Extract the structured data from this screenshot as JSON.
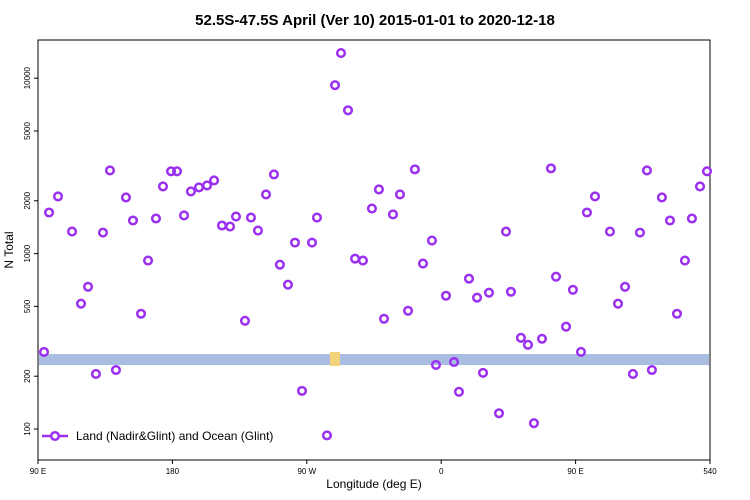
{
  "chart_data": {
    "type": "scatter",
    "title": "52.5S-47.5S April (Ver 10)   2015-01-01 to 2020-12-18",
    "x_label": "Longitude (deg E)",
    "y_label": "N Total",
    "log_y": true,
    "xlim": [
      90,
      540
    ],
    "xticks": [
      {
        "value": 90,
        "label": "90 E"
      },
      180,
      {
        "value": 270,
        "label": "90 W"
      },
      {
        "value": 360,
        "label": "0"
      },
      {
        "value": 450,
        "label": "90 E"
      },
      540
    ],
    "ylim": [
      66.6,
      16500
    ],
    "yticks": [
      100,
      200,
      500,
      1000,
      2000,
      5000,
      10000
    ],
    "legend": "bottom-left",
    "series": [
      {
        "name": "Land (Nadir&Glint) and Ocean (Glint)",
        "color": "#9b30f0",
        "x": [
          94.0,
          97.4,
          103.4,
          112.8,
          118.8,
          123.5,
          128.8,
          133.5,
          138.2,
          142.2,
          148.9,
          153.6,
          159,
          163.7,
          169,
          173.7,
          179.1,
          183.1,
          187.8,
          192.4,
          197.8,
          203.2,
          207.9,
          213.2,
          218.6,
          222.6,
          228.6,
          232.6,
          237.3,
          242.7,
          248,
          252,
          257.4,
          262.1,
          266.8,
          273.5,
          276.8,
          283.5,
          288.9,
          292.9,
          297.6,
          302.3,
          307.6,
          313.6,
          318.3,
          321.7,
          327.7,
          332.4,
          337.8,
          342.4,
          347.8,
          353.8,
          356.5,
          363.2,
          368.6,
          371.9,
          378.6,
          384,
          388,
          392,
          398.7,
          403.4,
          406.7,
          413.4,
          418.1,
          422.1,
          427.5,
          433.5,
          436.9,
          443.6,
          448.2,
          453.6,
          457.6,
          463,
          473,
          478.4,
          483.1,
          488.4,
          493.1,
          497.8,
          501.1,
          507.8,
          513.2,
          517.9,
          523.2,
          527.9,
          533.3,
          538
        ],
        "values": [
          275,
          1715,
          2117,
          1335,
          518,
          647,
          206,
          1317,
          2977,
          217,
          2090,
          1544,
          454,
          913,
          1585,
          2414,
          2946,
          2946,
          1650,
          2261,
          2383,
          2447,
          2612,
          1446,
          1425,
          1626,
          414,
          1604,
          1353,
          2175,
          2827,
          865,
          665,
          1155,
          165,
          1155,
          1604,
          92,
          9120,
          13900,
          6560,
          936,
          913,
          1807,
          2322,
          425,
          1671,
          2175,
          472,
          3020,
          877,
          1186,
          232,
          575,
          241,
          163,
          720,
          561,
          209,
          599,
          123,
          1335,
          606,
          331,
          302,
          108,
          327,
          3060,
          739,
          383,
          622,
          275,
          1715,
          2117,
          1335,
          518,
          647,
          206,
          1317,
          2977,
          217,
          2090,
          1544,
          454,
          913,
          1585,
          2414,
          2946
        ]
      }
    ]
  }
}
